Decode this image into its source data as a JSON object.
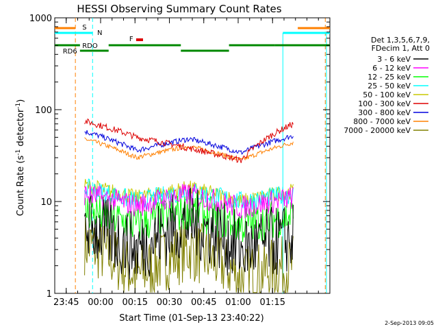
{
  "chart_data": {
    "type": "line",
    "title": "HESSI Observing Summary Count Rates",
    "xlabel": "Start Time (01-Sep-13 23:40:22)",
    "ylabel": "Count Rate (s-1 detector-1)",
    "ylabel_parts": {
      "pre": "Count Rate (s",
      "sup1": "-1",
      "mid": " detector",
      "sup2": "-1",
      "post": ")"
    },
    "y_scale": "log",
    "ylim": [
      1,
      1000
    ],
    "y_ticks": [
      "1",
      "10",
      "100",
      "1000"
    ],
    "xlim_minutes": [
      -20,
      100
    ],
    "x_ticks": [
      "23:45",
      "00:00",
      "00:15",
      "00:30",
      "00:45",
      "01:00",
      "01:15"
    ],
    "legend_header": [
      "Det 1,3,5,6,7,9,",
      "FDecim 1, Att 0"
    ],
    "legend_placement": "right",
    "series": [
      {
        "name": "3 - 6 keV",
        "color": "#000000",
        "base": 5.0,
        "shape": [
          5.5,
          3.0,
          6.0,
          3.0,
          4.0
        ],
        "noise": 0.9
      },
      {
        "name": "6 - 12 keV",
        "color": "#ff00ff",
        "base": 9.5,
        "shape": [
          12,
          9,
          12,
          8.5,
          11
        ],
        "noise": 0.3
      },
      {
        "name": "12 - 25 keV",
        "color": "#00ff00",
        "base": 6.0,
        "shape": [
          8,
          5.5,
          8,
          5.5,
          7
        ],
        "noise": 0.5
      },
      {
        "name": "25 - 50 keV",
        "color": "#00ffff",
        "base": 11.0,
        "shape": [
          14,
          10,
          13,
          10,
          12
        ],
        "noise": 0.25
      },
      {
        "name": "50 - 100 keV",
        "color": "#c8c800",
        "base": 14.0,
        "shape": [
          15,
          11,
          14,
          10,
          13
        ],
        "noise": 0.2
      },
      {
        "name": "100 - 300 keV",
        "color": "#dd0000",
        "base": 55,
        "shape": [
          75,
          50,
          38,
          28,
          70
        ],
        "noise": 0.08
      },
      {
        "name": "300 - 800 keV",
        "color": "#0000dd",
        "base": 40,
        "shape": [
          58,
          36,
          48,
          34,
          52
        ],
        "noise": 0.07
      },
      {
        "name": "800 - 7000 keV",
        "color": "#ff8000",
        "base": 32,
        "shape": [
          48,
          30,
          40,
          28,
          44
        ],
        "noise": 0.06
      },
      {
        "name": "7000 - 20000 keV",
        "color": "#808000",
        "base": 2.5,
        "shape": [
          3.5,
          1.5,
          3.0,
          1.5,
          2.0
        ],
        "noise": 0.8
      }
    ],
    "flags": [
      {
        "label": "S",
        "color": "#ff8000"
      },
      {
        "label": "N",
        "color": "#00ffff"
      },
      {
        "label": "F",
        "color": "#dd0000"
      },
      {
        "label": "RDO",
        "color": "#008800"
      },
      {
        "label": "RD6",
        "color": "#008800"
      }
    ],
    "grid": false
  },
  "footer": {
    "timestamp": "2-Sep-2013 09:05"
  }
}
